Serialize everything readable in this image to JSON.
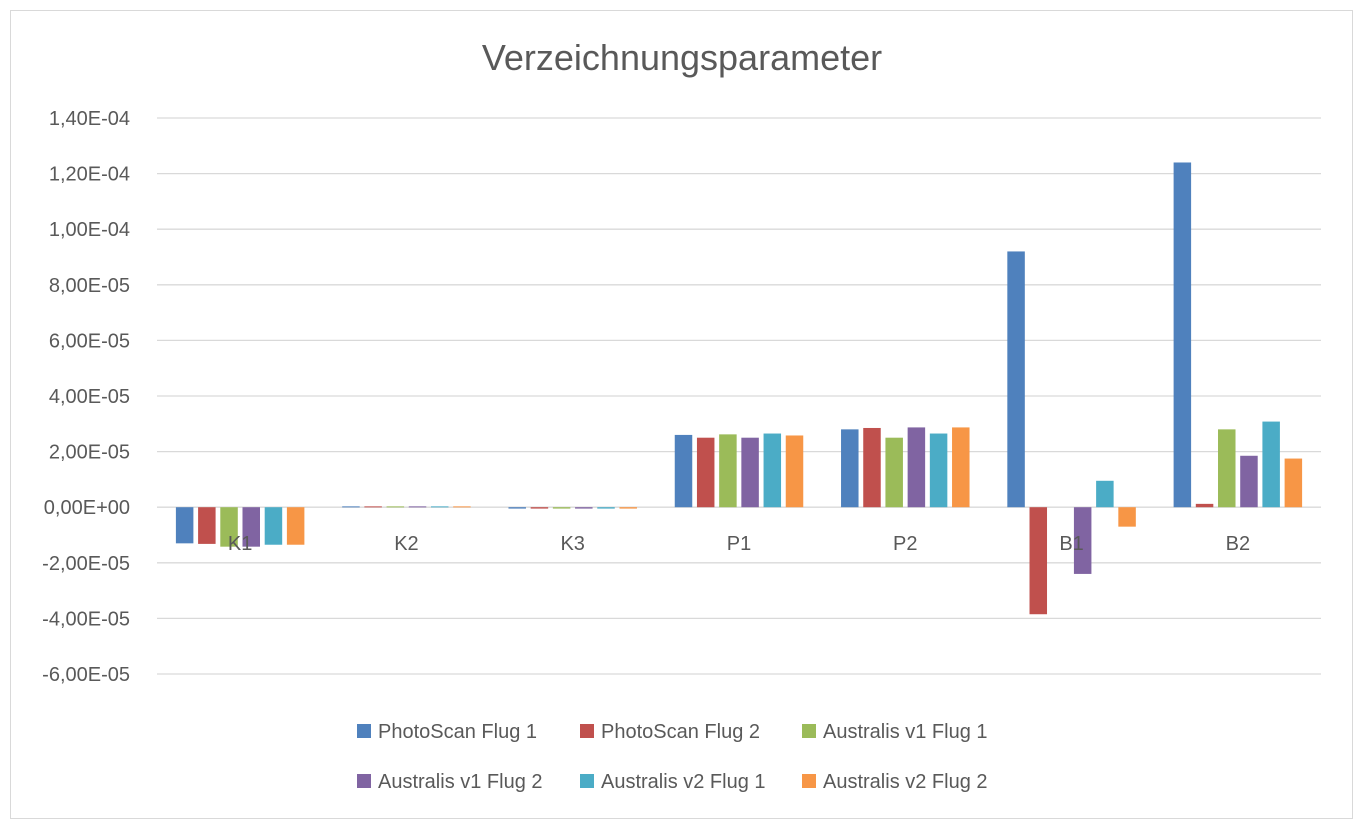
{
  "chart_data": {
    "type": "bar",
    "title": "Verzeichnungsparameter",
    "categories": [
      "K1",
      "K2",
      "K3",
      "P1",
      "P2",
      "B1",
      "B2"
    ],
    "ylim": [
      -6e-05,
      0.00014
    ],
    "y_ticks": [
      0.00014,
      0.00012,
      0.0001,
      8e-05,
      6e-05,
      4e-05,
      2e-05,
      0,
      -2e-05,
      -4e-05,
      -6e-05
    ],
    "y_tick_labels": [
      "1,40E-04",
      "1,20E-04",
      "1,00E-04",
      "8,00E-05",
      "6,00E-05",
      "4,00E-05",
      "2,00E-05",
      "0,00E+00",
      "-2,00E-05",
      "-4,00E-05",
      "-6,00E-05"
    ],
    "grid": true,
    "legend_position": "bottom",
    "series": [
      {
        "name": "PhotoScan Flug 1",
        "color": "#4f81bd",
        "values": [
          -1.3e-05,
          3e-07,
          -5e-07,
          2.6e-05,
          2.8e-05,
          9.2e-05,
          0.000124
        ]
      },
      {
        "name": "PhotoScan Flug 2",
        "color": "#c0504d",
        "values": [
          -1.32e-05,
          3e-07,
          -5e-07,
          2.5e-05,
          2.85e-05,
          -3.85e-05,
          1.2e-06
        ]
      },
      {
        "name": "Australis v1 Flug 1",
        "color": "#9bbb59",
        "values": [
          -1.42e-05,
          3e-07,
          -5e-07,
          2.62e-05,
          2.5e-05,
          0,
          2.8e-05
        ]
      },
      {
        "name": "Australis v1 Flug 2",
        "color": "#8064a2",
        "values": [
          -1.42e-05,
          3e-07,
          -5e-07,
          2.5e-05,
          2.87e-05,
          -2.4e-05,
          1.85e-05
        ]
      },
      {
        "name": "Australis v2 Flug 1",
        "color": "#4bacc6",
        "values": [
          -1.35e-05,
          3e-07,
          -5e-07,
          2.65e-05,
          2.65e-05,
          9.5e-06,
          3.08e-05
        ]
      },
      {
        "name": "Australis v2 Flug 2",
        "color": "#f79646",
        "values": [
          -1.35e-05,
          3e-07,
          -5e-07,
          2.58e-05,
          2.87e-05,
          -7e-06,
          1.75e-05
        ]
      }
    ]
  }
}
